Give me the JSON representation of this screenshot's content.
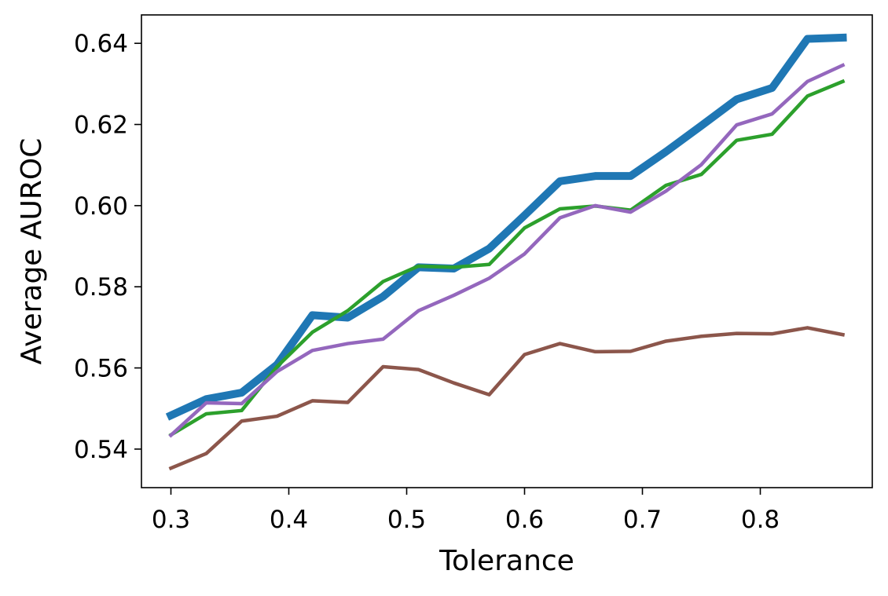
{
  "chart_data": {
    "type": "line",
    "title": "",
    "xlabel": "Tolerance",
    "ylabel": "Average AUROC",
    "xlim": [
      0.275,
      0.895
    ],
    "ylim": [
      0.5305,
      0.647
    ],
    "xticks": [
      0.3,
      0.4,
      0.5,
      0.6,
      0.7,
      0.8
    ],
    "xtick_labels": [
      "0.3",
      "0.4",
      "0.5",
      "0.6",
      "0.7",
      "0.8"
    ],
    "yticks": [
      0.54,
      0.56,
      0.58,
      0.6,
      0.62,
      0.64
    ],
    "ytick_labels": [
      "0.54",
      "0.56",
      "0.58",
      "0.60",
      "0.62",
      "0.64"
    ],
    "grid": false,
    "legend": false,
    "x": [
      0.3,
      0.33,
      0.36,
      0.39,
      0.42,
      0.45,
      0.48,
      0.51,
      0.54,
      0.57,
      0.6,
      0.63,
      0.66,
      0.69,
      0.72,
      0.75,
      0.78,
      0.81,
      0.84,
      0.87
    ],
    "series": [
      {
        "color": "#1f77b4",
        "emphasis": "thick",
        "values": [
          0.5483,
          0.5523,
          0.5539,
          0.5608,
          0.573,
          0.5724,
          0.5776,
          0.5848,
          0.5845,
          0.5894,
          0.5976,
          0.606,
          0.6073,
          0.6073,
          0.6133,
          0.6197,
          0.6262,
          0.629,
          0.6411,
          0.6414
        ]
      },
      {
        "color": "#2ca02c",
        "values": [
          0.5435,
          0.5487,
          0.5495,
          0.5603,
          0.5688,
          0.5741,
          0.5813,
          0.5851,
          0.5848,
          0.5855,
          0.5945,
          0.5992,
          0.5999,
          0.5989,
          0.605,
          0.6077,
          0.6161,
          0.6176,
          0.627,
          0.6306
        ]
      },
      {
        "color": "#9467bd",
        "values": [
          0.5434,
          0.5514,
          0.5512,
          0.5591,
          0.5643,
          0.566,
          0.5671,
          0.5741,
          0.5779,
          0.5821,
          0.5881,
          0.597,
          0.6,
          0.5984,
          0.6036,
          0.6101,
          0.6199,
          0.6226,
          0.6306,
          0.6346
        ]
      },
      {
        "color": "#8c564b",
        "values": [
          0.5353,
          0.5389,
          0.5469,
          0.5481,
          0.5519,
          0.5515,
          0.5603,
          0.5596,
          0.5563,
          0.5534,
          0.5633,
          0.566,
          0.564,
          0.5641,
          0.5666,
          0.5678,
          0.5685,
          0.5684,
          0.5699,
          0.5682
        ]
      }
    ]
  }
}
